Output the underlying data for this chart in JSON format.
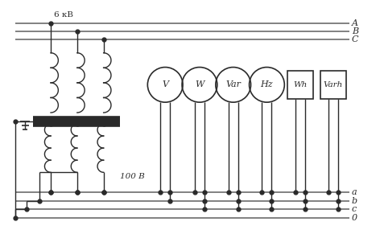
{
  "bg_color": "#ffffff",
  "lc": "#2a2a2a",
  "gc": "#777777",
  "label_6kv": "6 кВ",
  "label_100v": "100 В",
  "phases_6kv": [
    "A",
    "B",
    "C"
  ],
  "phases_100v": [
    "a",
    "b",
    "c",
    "0"
  ],
  "instruments_circle": [
    "V",
    "W",
    "Var",
    "Hz"
  ],
  "instruments_rect": [
    "Wh",
    "Varh"
  ]
}
